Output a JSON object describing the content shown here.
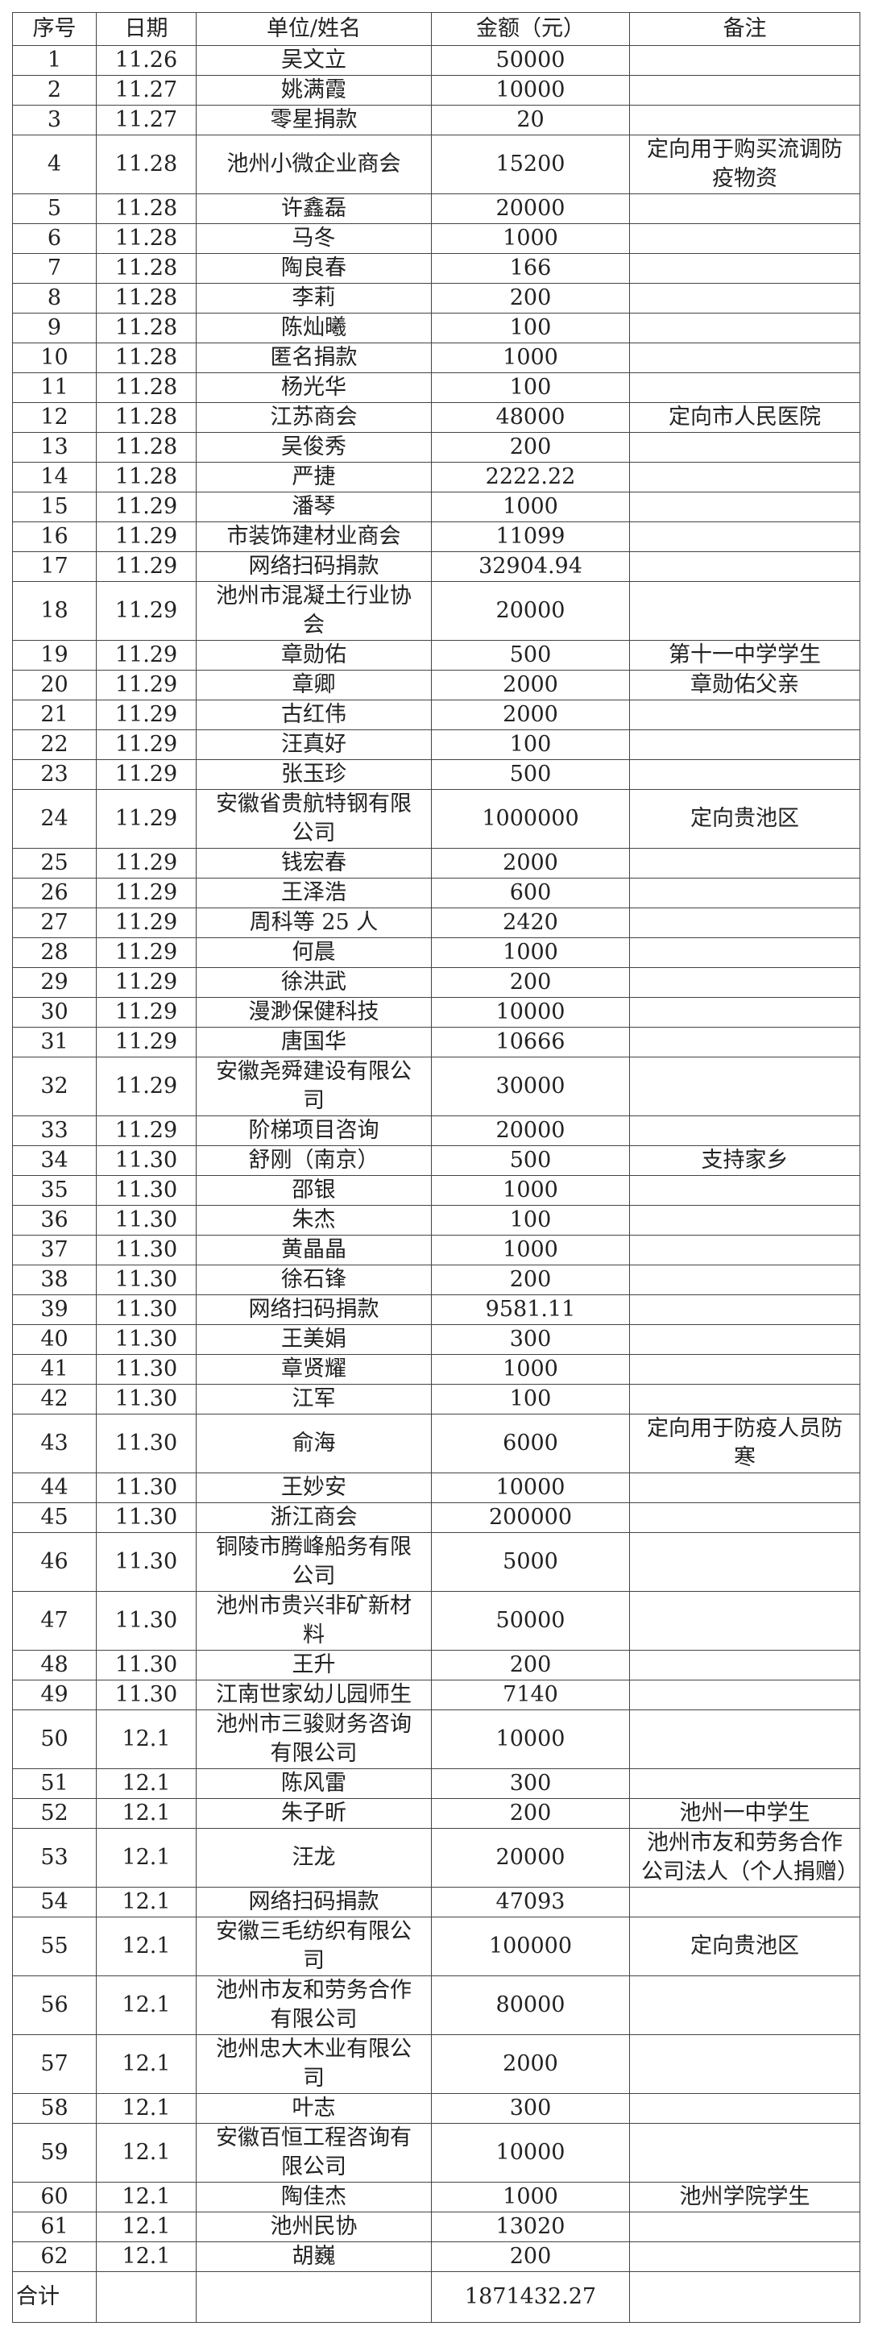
{
  "headers": [
    "序号",
    "日期",
    "单位/姓名",
    "金额（元）",
    "备注"
  ],
  "rows": [
    [
      "1",
      "11.26",
      "吴文立",
      "50000",
      ""
    ],
    [
      "2",
      "11.27",
      "姚满霞",
      "10000",
      ""
    ],
    [
      "3",
      "11.27",
      "零星捐款",
      "20",
      ""
    ],
    [
      "4",
      "11.28",
      "池州小微企业商会",
      "15200",
      "定向用于购买流调防疫物资"
    ],
    [
      "5",
      "11.28",
      "许鑫磊",
      "20000",
      ""
    ],
    [
      "6",
      "11.28",
      "马冬",
      "1000",
      ""
    ],
    [
      "7",
      "11.28",
      "陶良春",
      "166",
      ""
    ],
    [
      "8",
      "11.28",
      "李莉",
      "200",
      ""
    ],
    [
      "9",
      "11.28",
      "陈灿曦",
      "100",
      ""
    ],
    [
      "10",
      "11.28",
      "匿名捐款",
      "1000",
      ""
    ],
    [
      "11",
      "11.28",
      "杨光华",
      "100",
      ""
    ],
    [
      "12",
      "11.28",
      "江苏商会",
      "48000",
      "定向市人民医院"
    ],
    [
      "13",
      "11.28",
      "吴俊秀",
      "200",
      ""
    ],
    [
      "14",
      "11.28",
      "严捷",
      "2222.22",
      ""
    ],
    [
      "15",
      "11.29",
      "潘琴",
      "1000",
      ""
    ],
    [
      "16",
      "11.29",
      "市装饰建材业商会",
      "11099",
      ""
    ],
    [
      "17",
      "11.29",
      "网络扫码捐款",
      "32904.94",
      ""
    ],
    [
      "18",
      "11.29",
      "池州市混凝土行业协会",
      "20000",
      ""
    ],
    [
      "19",
      "11.29",
      "章勋佑",
      "500",
      "第十一中学学生"
    ],
    [
      "20",
      "11.29",
      "章卿",
      "2000",
      "章勋佑父亲"
    ],
    [
      "21",
      "11.29",
      "古红伟",
      "2000",
      ""
    ],
    [
      "22",
      "11.29",
      "汪真好",
      "100",
      ""
    ],
    [
      "23",
      "11.29",
      "张玉珍",
      "500",
      ""
    ],
    [
      "24",
      "11.29",
      "安徽省贵航特钢有限公司",
      "1000000",
      "定向贵池区"
    ],
    [
      "25",
      "11.29",
      "钱宏春",
      "2000",
      ""
    ],
    [
      "26",
      "11.29",
      "王泽浩",
      "600",
      ""
    ],
    [
      "27",
      "11.29",
      "周科等 25 人",
      "2420",
      ""
    ],
    [
      "28",
      "11.29",
      "何晨",
      "1000",
      ""
    ],
    [
      "29",
      "11.29",
      "徐洪武",
      "200",
      ""
    ],
    [
      "30",
      "11.29",
      "漫渺保健科技",
      "10000",
      ""
    ],
    [
      "31",
      "11.29",
      "唐国华",
      "10666",
      ""
    ],
    [
      "32",
      "11.29",
      "安徽尧舜建设有限公司",
      "30000",
      ""
    ],
    [
      "33",
      "11.29",
      "阶梯项目咨询",
      "20000",
      ""
    ],
    [
      "34",
      "11.30",
      "舒刚（南京）",
      "500",
      "支持家乡"
    ],
    [
      "35",
      "11.30",
      "邵银",
      "1000",
      ""
    ],
    [
      "36",
      "11.30",
      "朱杰",
      "100",
      ""
    ],
    [
      "37",
      "11.30",
      "黄晶晶",
      "1000",
      ""
    ],
    [
      "38",
      "11.30",
      "徐石锋",
      "200",
      ""
    ],
    [
      "39",
      "11.30",
      "网络扫码捐款",
      "9581.11",
      ""
    ],
    [
      "40",
      "11.30",
      "王美娟",
      "300",
      ""
    ],
    [
      "41",
      "11.30",
      "章贤耀",
      "1000",
      ""
    ],
    [
      "42",
      "11.30",
      "江军",
      "100",
      ""
    ],
    [
      "43",
      "11.30",
      "俞海",
      "6000",
      "定向用于防疫人员防寒"
    ],
    [
      "44",
      "11.30",
      "王妙安",
      "10000",
      ""
    ],
    [
      "45",
      "11.30",
      "浙江商会",
      "200000",
      ""
    ],
    [
      "46",
      "11.30",
      "铜陵市腾峰船务有限公司",
      "5000",
      ""
    ],
    [
      "47",
      "11.30",
      "池州市贵兴非矿新材料",
      "50000",
      ""
    ],
    [
      "48",
      "11.30",
      "王升",
      "200",
      ""
    ],
    [
      "49",
      "11.30",
      "江南世家幼儿园师生",
      "7140",
      ""
    ],
    [
      "50",
      "12.1",
      "池州市三骏财务咨询有限公司",
      "10000",
      ""
    ],
    [
      "51",
      "12.1",
      "陈风雷",
      "300",
      ""
    ],
    [
      "52",
      "12.1",
      "朱子昕",
      "200",
      "池州一中学生"
    ],
    [
      "53",
      "12.1",
      "汪龙",
      "20000",
      "池州市友和劳务合作公司法人（个人捐赠）"
    ],
    [
      "54",
      "12.1",
      "网络扫码捐款",
      "47093",
      ""
    ],
    [
      "55",
      "12.1",
      "安徽三毛纺织有限公司",
      "100000",
      "定向贵池区"
    ],
    [
      "56",
      "12.1",
      "池州市友和劳务合作有限公司",
      "80000",
      ""
    ],
    [
      "57",
      "12.1",
      "池州忠大木业有限公司",
      "2000",
      ""
    ],
    [
      "58",
      "12.1",
      "叶志",
      "300",
      ""
    ],
    [
      "59",
      "12.1",
      "安徽百恒工程咨询有限公司",
      "10000",
      ""
    ],
    [
      "60",
      "12.1",
      "陶佳杰",
      "1000",
      "池州学院学生"
    ],
    [
      "61",
      "12.1",
      "池州民协",
      "13020",
      ""
    ],
    [
      "62",
      "12.1",
      "胡巍",
      "200",
      ""
    ]
  ],
  "total": {
    "label": "合计",
    "amount": "1871432.27"
  }
}
